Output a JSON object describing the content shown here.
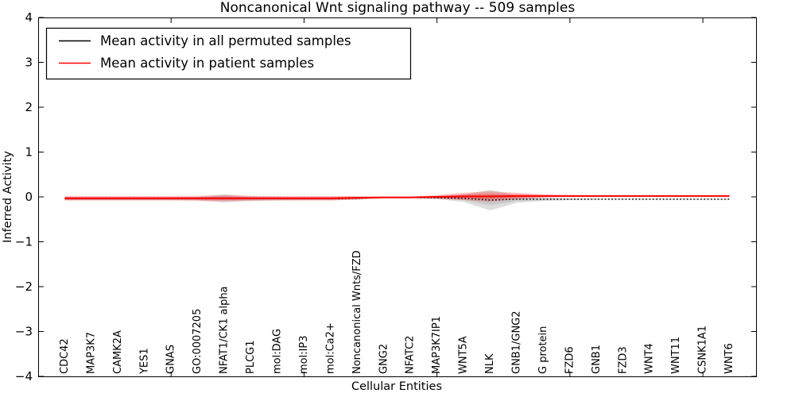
{
  "chart_data": {
    "type": "line",
    "title": "Noncanonical Wnt signaling pathway -- 509 samples",
    "xlabel": "Cellular Entities",
    "ylabel": "Inferred Activity",
    "xlim": [
      0,
      27
    ],
    "ylim": [
      -4,
      4
    ],
    "yticks": [
      -4,
      -3,
      -2,
      -1,
      0,
      1,
      2,
      3,
      4
    ],
    "xticks": [
      5,
      10,
      15,
      20,
      25
    ],
    "grid": false,
    "legend_position": "upper left",
    "categories": [
      "CDC42",
      "MAP3K7",
      "CAMK2A",
      "YES1",
      "GNAS",
      "GO:0007205",
      "NFAT1/CK1 alpha",
      "PLCG1",
      "mol:DAG",
      "mol:IP3",
      "mol:Ca2+",
      "Noncanonical Wnts/FZD",
      "GNG2",
      "NFATC2",
      "MAP3K7IP1",
      "WNT5A",
      "NLK",
      "GNB1/GNG2",
      "G protein",
      "FZD6",
      "GNB1",
      "FZD3",
      "WNT4",
      "WNT11",
      "CSNK1A1",
      "WNT6"
    ],
    "x": [
      1,
      2,
      3,
      4,
      5,
      6,
      7,
      8,
      9,
      10,
      11,
      12,
      13,
      14,
      15,
      16,
      17,
      18,
      19,
      20,
      21,
      22,
      23,
      24,
      25,
      26
    ],
    "series": [
      {
        "name": "Mean activity in all permuted samples",
        "color": "#000000",
        "style": "dotted",
        "band_color": "#aaaaaa",
        "band_opacity": 0.4,
        "values": [
          -0.04,
          -0.04,
          -0.04,
          -0.04,
          -0.04,
          -0.04,
          -0.03,
          -0.04,
          -0.04,
          -0.04,
          -0.04,
          -0.03,
          -0.015,
          -0.015,
          -0.02,
          -0.03,
          -0.07,
          -0.05,
          -0.05,
          -0.05,
          -0.05,
          -0.05,
          -0.05,
          -0.05,
          -0.05,
          -0.05
        ],
        "band_halfwidth": [
          0.035,
          0.035,
          0.035,
          0.035,
          0.035,
          0.04,
          0.09,
          0.05,
          0.04,
          0.035,
          0.035,
          0.03,
          0.01,
          0.01,
          0.03,
          0.08,
          0.23,
          0.08,
          0.04,
          0.02,
          0.012,
          0.01,
          0.01,
          0.01,
          0.01,
          0.01
        ]
      },
      {
        "name": "Mean activity in patient samples",
        "color": "#ff0000",
        "style": "solid",
        "band_color": "#ff0000",
        "band_opacity": 0.25,
        "values": [
          -0.03,
          -0.03,
          -0.03,
          -0.03,
          -0.03,
          -0.03,
          -0.03,
          -0.03,
          -0.03,
          -0.03,
          -0.03,
          -0.02,
          -0.01,
          -0.01,
          0.0,
          0.01,
          0.01,
          0.02,
          0.02,
          0.02,
          0.02,
          0.02,
          0.02,
          0.02,
          0.02,
          0.02
        ],
        "band_halfwidth": [
          0.05,
          0.05,
          0.05,
          0.05,
          0.05,
          0.055,
          0.07,
          0.055,
          0.05,
          0.05,
          0.05,
          0.04,
          0.015,
          0.015,
          0.04,
          0.08,
          0.115,
          0.07,
          0.035,
          0.02,
          0.012,
          0.01,
          0.01,
          0.01,
          0.01,
          0.01
        ]
      }
    ]
  },
  "legend": {
    "entries": [
      {
        "label": "Mean activity in all permuted samples",
        "color": "#000000"
      },
      {
        "label": "Mean activity in patient samples",
        "color": "#ff0000"
      }
    ]
  }
}
